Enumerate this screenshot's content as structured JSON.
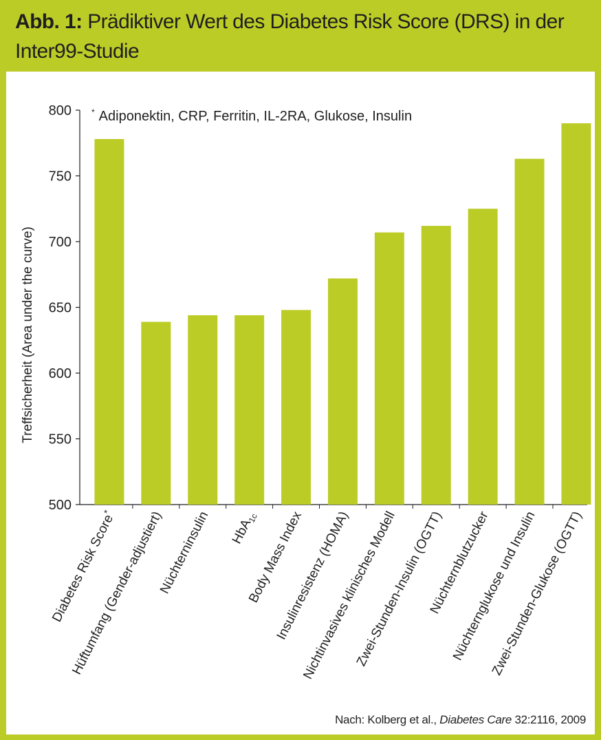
{
  "figure": {
    "label": "Abb. 1:",
    "title": "Prädiktiver Wert des Diabetes Risk Score (DRS) in der Inter99-Studie",
    "source_prefix": "Nach: Kolberg et al., ",
    "source_journal": "Diabetes Care",
    "source_suffix": " 32:2116, 2009",
    "colors": {
      "frame": "#bccc27",
      "bar": "#bccc27",
      "text": "#1f1f1f"
    }
  },
  "chart_data": {
    "type": "bar",
    "ylabel": "Treffsicherheit (Area under the curve)",
    "ylim": [
      500,
      800
    ],
    "yticks": [
      500,
      550,
      600,
      650,
      700,
      750,
      800
    ],
    "footnote_marker": "*",
    "footnote": "Adiponektin, CRP, Ferritin, IL-2RA, Glukose, Insulin",
    "categories": [
      "Diabetes Risk Score*",
      "Hüftumfang (Gender-adjustiert)",
      "Nüchterninsulin",
      "HbA1c",
      "Body Mass Index",
      "Insulinresistenz (HOMA)",
      "Nichtinvasives klinisches Modell",
      "Zwei-Stunden-Insulin (OGTT)",
      "Nüchternblutzucker",
      "Nüchternglukose und Insulin",
      "Zwei-Stunden-Glukose (OGTT)"
    ],
    "values": [
      778,
      639,
      644,
      644,
      648,
      672,
      707,
      712,
      725,
      763,
      790
    ],
    "grid": false
  }
}
